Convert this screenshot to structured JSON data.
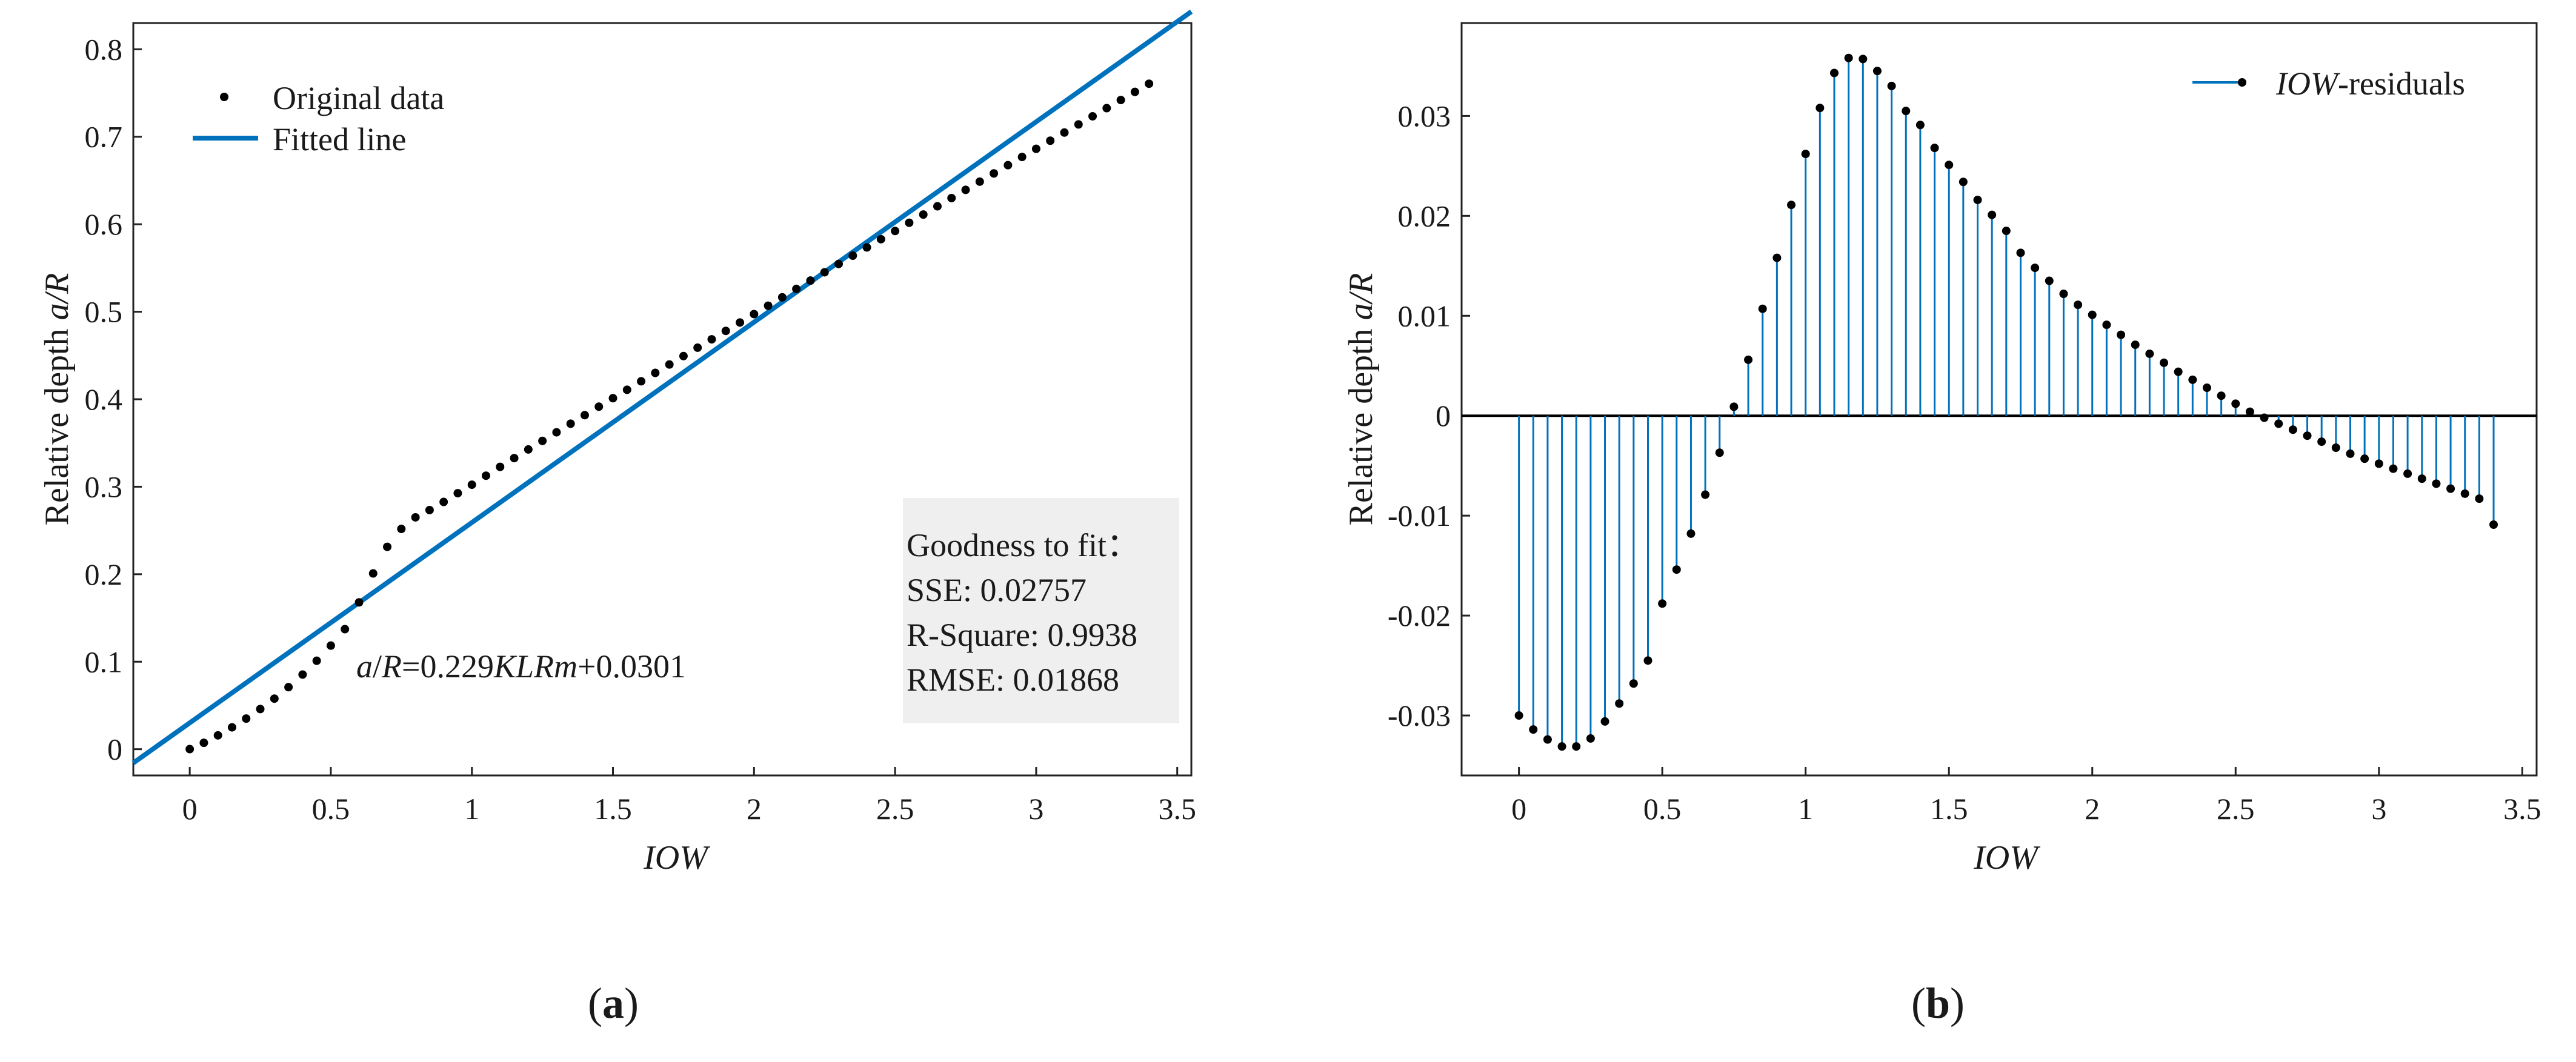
{
  "colors": {
    "fit_line": "#0072BD",
    "stem": "#0072BD",
    "points": "#000000",
    "zero_line": "#000000",
    "gof_box": "#EFEFEF"
  },
  "chart_data": [
    {
      "panel": "a",
      "type": "scatter",
      "title": "",
      "xlabel": "IOW",
      "ylabel_prefix": "Relative depth ",
      "ylabel_var": "a/R",
      "xlim": [
        -0.2,
        3.55
      ],
      "ylim": [
        -0.03,
        0.83
      ],
      "xticks": [
        0,
        0.5,
        1,
        1.5,
        2,
        2.5,
        3,
        3.5
      ],
      "xtick_labels": [
        "0",
        "0.5",
        "1",
        "1.5",
        "2",
        "2.5",
        "3",
        "3.5"
      ],
      "yticks": [
        0,
        0.1,
        0.2,
        0.3,
        0.4,
        0.5,
        0.6,
        0.7,
        0.8
      ],
      "ytick_labels": [
        "0",
        "0.1",
        "0.2",
        "0.3",
        "0.4",
        "0.5",
        "0.6",
        "0.7",
        "0.8"
      ],
      "legend": {
        "position": "top-left",
        "entries": [
          "Original data",
          "Fitted line"
        ]
      },
      "series": [
        {
          "name": "Original data",
          "marker": "dot",
          "x": [
            0,
            0.05,
            0.1,
            0.15,
            0.2,
            0.25,
            0.3,
            0.35,
            0.4,
            0.45,
            0.5,
            0.55,
            0.6,
            0.65,
            0.7,
            0.75,
            0.8,
            0.85,
            0.9,
            0.95,
            1,
            1.05,
            1.1,
            1.15,
            1.2,
            1.25,
            1.3,
            1.35,
            1.4,
            1.45,
            1.5,
            1.55,
            1.6,
            1.65,
            1.7,
            1.75,
            1.8,
            1.85,
            1.9,
            1.95,
            2,
            2.05,
            2.1,
            2.15,
            2.2,
            2.25,
            2.3,
            2.35,
            2.4,
            2.45,
            2.5,
            2.55,
            2.6,
            2.65,
            2.7,
            2.75,
            2.8,
            2.85,
            2.9,
            2.95,
            3,
            3.05,
            3.1,
            3.15,
            3.2,
            3.25,
            3.3,
            3.35,
            3.4
          ],
          "y": [
            0.0001,
            0.0073,
            0.0158,
            0.025,
            0.035,
            0.0459,
            0.0578,
            0.0709,
            0.0853,
            0.1011,
            0.1184,
            0.1372,
            0.1678,
            0.2009,
            0.2313,
            0.2518,
            0.265,
            0.2733,
            0.2826,
            0.2926,
            0.3023,
            0.3126,
            0.3227,
            0.3327,
            0.3426,
            0.3524,
            0.3622,
            0.372,
            0.3818,
            0.3915,
            0.4012,
            0.4108,
            0.4205,
            0.4301,
            0.4397,
            0.4493,
            0.4589,
            0.4685,
            0.4781,
            0.4877,
            0.4973,
            0.5069,
            0.5165,
            0.5261,
            0.5356,
            0.5451,
            0.5546,
            0.5641,
            0.5735,
            0.5829,
            0.5923,
            0.6017,
            0.6111,
            0.6205,
            0.6299,
            0.6393,
            0.6487,
            0.6581,
            0.6675,
            0.6769,
            0.6862,
            0.6955,
            0.7048,
            0.7141,
            0.7234,
            0.7327,
            0.742,
            0.7513,
            0.7606
          ]
        },
        {
          "name": "Fitted line",
          "type": "line",
          "slope": 0.229,
          "intercept": 0.0301,
          "x_range": [
            -0.2,
            3.55
          ]
        }
      ],
      "equation": {
        "var1": "a",
        "slash": "/",
        "var2": "R",
        "mid": "=0.229",
        "var3": "KLRm",
        "tail": "+0.0301"
      },
      "goodness_of_fit": {
        "title": "Goodness to fit：",
        "sse": "SSE: 0.02757",
        "rsquare": "R-Square: 0.9938",
        "rmse": "RMSE: 0.01868"
      },
      "panel_label": "a"
    },
    {
      "panel": "b",
      "type": "stem",
      "title": "",
      "xlabel": "IOW",
      "ylabel_prefix": "Relative depth ",
      "ylabel_var": "a/R",
      "xlim": [
        -0.2,
        3.55
      ],
      "ylim": [
        -0.036,
        0.0393
      ],
      "xticks": [
        0,
        0.5,
        1,
        1.5,
        2,
        2.5,
        3,
        3.5
      ],
      "xtick_labels": [
        "0",
        "0.5",
        "1",
        "1.5",
        "2",
        "2.5",
        "3",
        "3.5"
      ],
      "yticks": [
        -0.03,
        -0.02,
        -0.01,
        0,
        0.01,
        0.02,
        0.03
      ],
      "ytick_labels": [
        "-0.03",
        "-0.02",
        "-0.01",
        "0",
        "0.01",
        "0.02",
        "0.03"
      ],
      "legend": {
        "position": "top-right",
        "entries": [
          "IOW-residuals"
        ],
        "italic_part": "IOW",
        "rest": "-residuals"
      },
      "series": [
        {
          "name": "IOW-residuals",
          "x": [
            0,
            0.05,
            0.1,
            0.15,
            0.2,
            0.25,
            0.3,
            0.35,
            0.4,
            0.45,
            0.5,
            0.55,
            0.6,
            0.65,
            0.7,
            0.75,
            0.8,
            0.85,
            0.9,
            0.95,
            1,
            1.05,
            1.1,
            1.15,
            1.2,
            1.25,
            1.3,
            1.35,
            1.4,
            1.45,
            1.5,
            1.55,
            1.6,
            1.65,
            1.7,
            1.75,
            1.8,
            1.85,
            1.9,
            1.95,
            2,
            2.05,
            2.1,
            2.15,
            2.2,
            2.25,
            2.3,
            2.35,
            2.4,
            2.45,
            2.5,
            2.55,
            2.6,
            2.65,
            2.7,
            2.75,
            2.8,
            2.85,
            2.9,
            2.95,
            3,
            3.05,
            3.1,
            3.15,
            3.2,
            3.25,
            3.3,
            3.35,
            3.4
          ],
          "y": [
            -0.03,
            -0.0314,
            -0.0324,
            -0.0331,
            -0.0331,
            -0.0323,
            -0.0306,
            -0.0288,
            -0.0268,
            -0.0245,
            -0.0188,
            -0.0154,
            -0.0118,
            -0.0079,
            -0.0037,
            0.0009,
            0.0056,
            0.0107,
            0.0158,
            0.0211,
            0.0262,
            0.0308,
            0.0343,
            0.0358,
            0.0357,
            0.0345,
            0.033,
            0.0305,
            0.0291,
            0.0268,
            0.0251,
            0.0234,
            0.0216,
            0.0201,
            0.0185,
            0.0163,
            0.0148,
            0.0135,
            0.0122,
            0.0111,
            0.0101,
            0.0091,
            0.0081,
            0.0071,
            0.0062,
            0.0053,
            0.0044,
            0.0036,
            0.0028,
            0.002,
            0.0012,
            0.0004,
            -0.0002,
            -0.0008,
            -0.0014,
            -0.002,
            -0.0026,
            -0.0032,
            -0.0038,
            -0.0043,
            -0.0048,
            -0.0053,
            -0.0058,
            -0.0063,
            -0.0068,
            -0.0073,
            -0.0078,
            -0.0083,
            -0.0109
          ]
        }
      ],
      "panel_label": "b"
    }
  ]
}
